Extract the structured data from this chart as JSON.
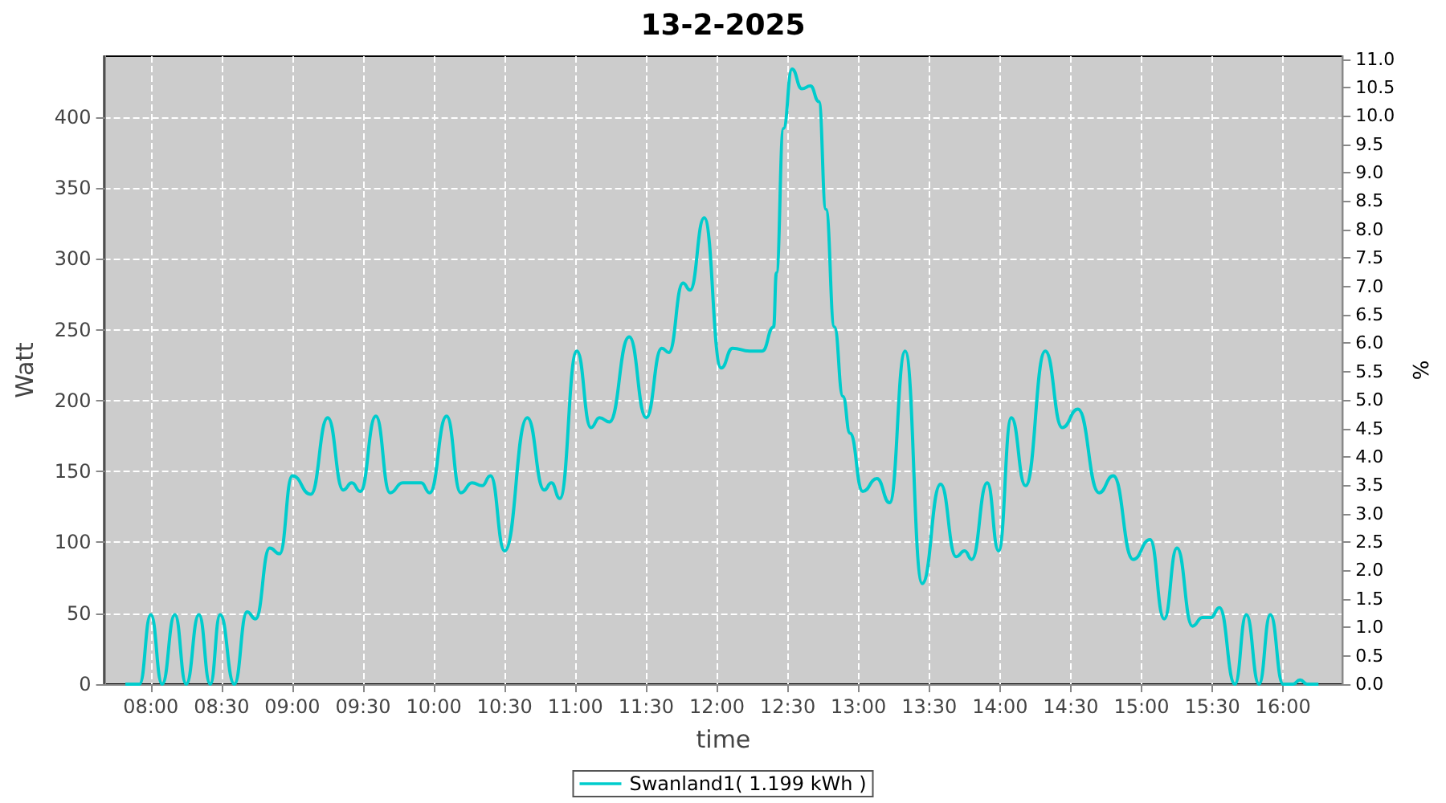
{
  "chart_data": {
    "type": "line",
    "title": "13-2-2025",
    "xlabel": "time",
    "ylabel": "Watt",
    "y2label": "%",
    "x": [
      7.82,
      7.92,
      8.0,
      8.08,
      8.17,
      8.25,
      8.34,
      8.42,
      8.49,
      8.59,
      8.68,
      8.74,
      8.84,
      8.91,
      9.0,
      9.13,
      9.25,
      9.36,
      9.42,
      9.48,
      9.59,
      9.69,
      9.78,
      9.91,
      9.97,
      10.09,
      10.19,
      10.27,
      10.34,
      10.4,
      10.5,
      10.66,
      10.78,
      10.83,
      10.89,
      11.01,
      11.11,
      11.17,
      11.24,
      11.38,
      11.5,
      11.61,
      11.66,
      11.76,
      11.81,
      11.91,
      12.03,
      12.11,
      12.23,
      12.32,
      12.4,
      12.42,
      12.47,
      12.53,
      12.6,
      12.66,
      12.72,
      12.77,
      12.83,
      12.89,
      12.94,
      13.03,
      13.13,
      13.22,
      13.33,
      13.45,
      13.58,
      13.69,
      13.75,
      13.8,
      13.91,
      13.99,
      14.08,
      14.18,
      14.32,
      14.44,
      14.55,
      14.7,
      14.8,
      14.94,
      15.06,
      15.16,
      15.25,
      15.36,
      15.43,
      15.49,
      15.55,
      15.66,
      15.74,
      15.83,
      15.91,
      16.0,
      16.07,
      16.12,
      16.17,
      16.25
    ],
    "series": [
      {
        "name": "Swanland1( 1.199 kWh )",
        "color": "#00cccc",
        "values": [
          0,
          0,
          49,
          0,
          49,
          0,
          49,
          0,
          49,
          0,
          51,
          46,
          96,
          92,
          147,
          134,
          188,
          137,
          142,
          136,
          189,
          135,
          142,
          142,
          135,
          189,
          135,
          142,
          140,
          147,
          94,
          188,
          137,
          142,
          131,
          235,
          181,
          188,
          185,
          245,
          188,
          237,
          234,
          283,
          278,
          329,
          223,
          237,
          235,
          235,
          252,
          290,
          392,
          434,
          420,
          422,
          411,
          335,
          252,
          203,
          177,
          136,
          145,
          128,
          235,
          71,
          141,
          90,
          94,
          88,
          142,
          94,
          188,
          140,
          235,
          181,
          194,
          135,
          147,
          88,
          102,
          46,
          96,
          41,
          47,
          47,
          54,
          0,
          49,
          0,
          49,
          0,
          0,
          3,
          0,
          0
        ]
      }
    ],
    "xlim": [
      7.67,
      16.42
    ],
    "xticks": [
      {
        "value": 8,
        "label": "08:00"
      },
      {
        "value": 8.5,
        "label": "08:30"
      },
      {
        "value": 9,
        "label": "09:00"
      },
      {
        "value": 9.5,
        "label": "09:30"
      },
      {
        "value": 10,
        "label": "10:00"
      },
      {
        "value": 10.5,
        "label": "10:30"
      },
      {
        "value": 11,
        "label": "11:00"
      },
      {
        "value": 11.5,
        "label": "11:30"
      },
      {
        "value": 12,
        "label": "12:00"
      },
      {
        "value": 12.5,
        "label": "12:30"
      },
      {
        "value": 13,
        "label": "13:00"
      },
      {
        "value": 13.5,
        "label": "13:30"
      },
      {
        "value": 14,
        "label": "14:00"
      },
      {
        "value": 14.5,
        "label": "14:30"
      },
      {
        "value": 15,
        "label": "15:00"
      },
      {
        "value": 15.5,
        "label": "15:30"
      },
      {
        "value": 16,
        "label": "16:00"
      }
    ],
    "ylim": [
      0,
      443
    ],
    "yticks": [
      0,
      50,
      100,
      150,
      200,
      250,
      300,
      350,
      400
    ],
    "y2lim": [
      0,
      11.05
    ],
    "y2ticks": [
      {
        "value": 0,
        "label": "0.0"
      },
      {
        "value": 0.5,
        "label": "0.5"
      },
      {
        "value": 1,
        "label": "1.0"
      },
      {
        "value": 1.5,
        "label": "1.5"
      },
      {
        "value": 2,
        "label": "2.0"
      },
      {
        "value": 2.5,
        "label": "2.5"
      },
      {
        "value": 3,
        "label": "3.0"
      },
      {
        "value": 3.5,
        "label": "3.5"
      },
      {
        "value": 4,
        "label": "4.0"
      },
      {
        "value": 4.5,
        "label": "4.5"
      },
      {
        "value": 5,
        "label": "5.0"
      },
      {
        "value": 5.5,
        "label": "5.5"
      },
      {
        "value": 6,
        "label": "6.0"
      },
      {
        "value": 6.5,
        "label": "6.5"
      },
      {
        "value": 7,
        "label": "7.0"
      },
      {
        "value": 7.5,
        "label": "7.5"
      },
      {
        "value": 8,
        "label": "8.0"
      },
      {
        "value": 8.5,
        "label": "8.5"
      },
      {
        "value": 9,
        "label": "9.0"
      },
      {
        "value": 9.5,
        "label": "9.5"
      },
      {
        "value": 10,
        "label": "10.0"
      },
      {
        "value": 10.5,
        "label": "10.5"
      },
      {
        "value": 11,
        "label": "11.0"
      }
    ],
    "grid": true,
    "legend": "bottom",
    "marker": "none",
    "line_style": "solid"
  }
}
